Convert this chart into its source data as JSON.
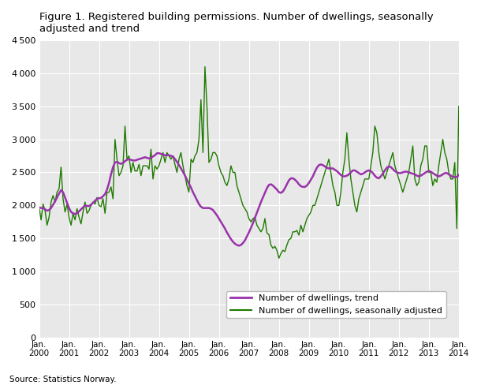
{
  "title": "Figure 1. Registered building permissions. Number of dwellings, seasonally\nadjusted and trend",
  "source": "Source: Statistics Norway.",
  "xlabel_ticks": [
    "Jan.\n2000",
    "Jan.\n2001",
    "Jan.\n2002",
    "Jan.\n2003",
    "Jan.\n2004",
    "Jan.\n2005",
    "Jan.\n2006",
    "Jan.\n2007",
    "Jan.\n2008",
    "Jan.\n2009",
    "Jan.\n2010",
    "Jan.\n2011",
    "Jan.\n2012",
    "Jan.\n2013",
    "Jan.\n2014"
  ],
  "yticks": [
    0,
    500,
    1000,
    1500,
    2000,
    2500,
    3000,
    3500,
    4000,
    4500
  ],
  "ylim": [
    0,
    4500
  ],
  "legend_trend": "Number of dwellings, trend",
  "legend_sa": "Number of dwellings, seasonally adjusted",
  "trend_color": "#9933AA",
  "sa_color": "#1E7A00",
  "background_color": "#E8E8E8",
  "grid_color": "#FFFFFF",
  "trend_linewidth": 1.8,
  "sa_linewidth": 1.0,
  "seasonally_adjusted": [
    1980,
    1780,
    2020,
    1920,
    1700,
    1820,
    2050,
    2150,
    2050,
    2200,
    2250,
    2580,
    2100,
    1900,
    2020,
    1820,
    1700,
    1880,
    1780,
    1950,
    1820,
    1720,
    1900,
    2050,
    1880,
    1920,
    2000,
    2050,
    2020,
    2120,
    2000,
    1980,
    2100,
    1880,
    2200,
    2200,
    2280,
    2100,
    3000,
    2700,
    2450,
    2500,
    2600,
    3200,
    2700,
    2750,
    2500,
    2650,
    2520,
    2520,
    2620,
    2450,
    2600,
    2600,
    2600,
    2550,
    2850,
    2400,
    2600,
    2550,
    2600,
    2700,
    2800,
    2650,
    2800,
    2750,
    2700,
    2750,
    2620,
    2500,
    2700,
    2800,
    2600,
    2450,
    2300,
    2200,
    2700,
    2650,
    2750,
    2800,
    3000,
    3600,
    2800,
    4100,
    3500,
    2650,
    2700,
    2800,
    2800,
    2750,
    2600,
    2500,
    2450,
    2350,
    2300,
    2400,
    2600,
    2500,
    2500,
    2300,
    2200,
    2100,
    2000,
    1950,
    1900,
    1800,
    1750,
    1800,
    1820,
    1700,
    1650,
    1600,
    1650,
    1800,
    1580,
    1560,
    1400,
    1350,
    1380,
    1320,
    1200,
    1270,
    1320,
    1300,
    1400,
    1480,
    1500,
    1600,
    1600,
    1620,
    1550,
    1700,
    1600,
    1700,
    1800,
    1850,
    1900,
    2000,
    2000,
    2100,
    2200,
    2300,
    2400,
    2500,
    2600,
    2700,
    2500,
    2300,
    2200,
    2000,
    2000,
    2200,
    2500,
    2700,
    3100,
    2700,
    2400,
    2200,
    2000,
    1900,
    2100,
    2200,
    2300,
    2400,
    2400,
    2400,
    2600,
    2800,
    3200,
    3100,
    2800,
    2600,
    2500,
    2400,
    2500,
    2600,
    2700,
    2800,
    2600,
    2500,
    2400,
    2300,
    2200,
    2300,
    2400,
    2500,
    2700,
    2900,
    2400,
    2300,
    2350,
    2600,
    2700,
    2900,
    2900,
    2500,
    2500,
    2300,
    2400,
    2350,
    2600,
    2800,
    3000,
    2800,
    2700,
    2500,
    2400,
    2400,
    2650,
    1650,
    3500
  ],
  "trend": [
    1970,
    1960,
    1960,
    1940,
    1920,
    1930,
    1960,
    2010,
    2060,
    2120,
    2180,
    2230,
    2200,
    2120,
    2040,
    1960,
    1900,
    1880,
    1870,
    1880,
    1910,
    1940,
    1970,
    2000,
    1990,
    1990,
    2010,
    2040,
    2070,
    2100,
    2110,
    2110,
    2140,
    2170,
    2240,
    2340,
    2470,
    2580,
    2650,
    2660,
    2640,
    2630,
    2640,
    2670,
    2690,
    2700,
    2690,
    2680,
    2680,
    2690,
    2700,
    2710,
    2720,
    2730,
    2720,
    2710,
    2720,
    2740,
    2760,
    2790,
    2790,
    2780,
    2770,
    2760,
    2760,
    2760,
    2750,
    2740,
    2700,
    2660,
    2610,
    2560,
    2510,
    2450,
    2390,
    2330,
    2270,
    2200,
    2140,
    2080,
    2020,
    1980,
    1960,
    1960,
    1960,
    1960,
    1950,
    1930,
    1890,
    1850,
    1800,
    1750,
    1700,
    1650,
    1590,
    1540,
    1490,
    1450,
    1420,
    1400,
    1390,
    1400,
    1430,
    1470,
    1530,
    1590,
    1660,
    1730,
    1810,
    1890,
    1970,
    2050,
    2120,
    2190,
    2260,
    2310,
    2320,
    2300,
    2270,
    2240,
    2200,
    2190,
    2210,
    2260,
    2320,
    2380,
    2410,
    2410,
    2390,
    2360,
    2320,
    2290,
    2280,
    2280,
    2300,
    2340,
    2390,
    2440,
    2510,
    2570,
    2610,
    2620,
    2610,
    2590,
    2570,
    2560,
    2560,
    2560,
    2540,
    2520,
    2490,
    2460,
    2440,
    2440,
    2450,
    2470,
    2500,
    2530,
    2530,
    2510,
    2490,
    2470,
    2480,
    2500,
    2520,
    2530,
    2520,
    2490,
    2450,
    2420,
    2410,
    2440,
    2480,
    2530,
    2570,
    2590,
    2580,
    2550,
    2520,
    2500,
    2490,
    2490,
    2500,
    2510,
    2510,
    2500,
    2490,
    2480,
    2470,
    2450,
    2440,
    2450,
    2470,
    2490,
    2510,
    2520,
    2510,
    2490,
    2470,
    2450,
    2440,
    2450,
    2470,
    2490,
    2490,
    2470,
    2450,
    2430,
    2430,
    2430,
    2460
  ]
}
